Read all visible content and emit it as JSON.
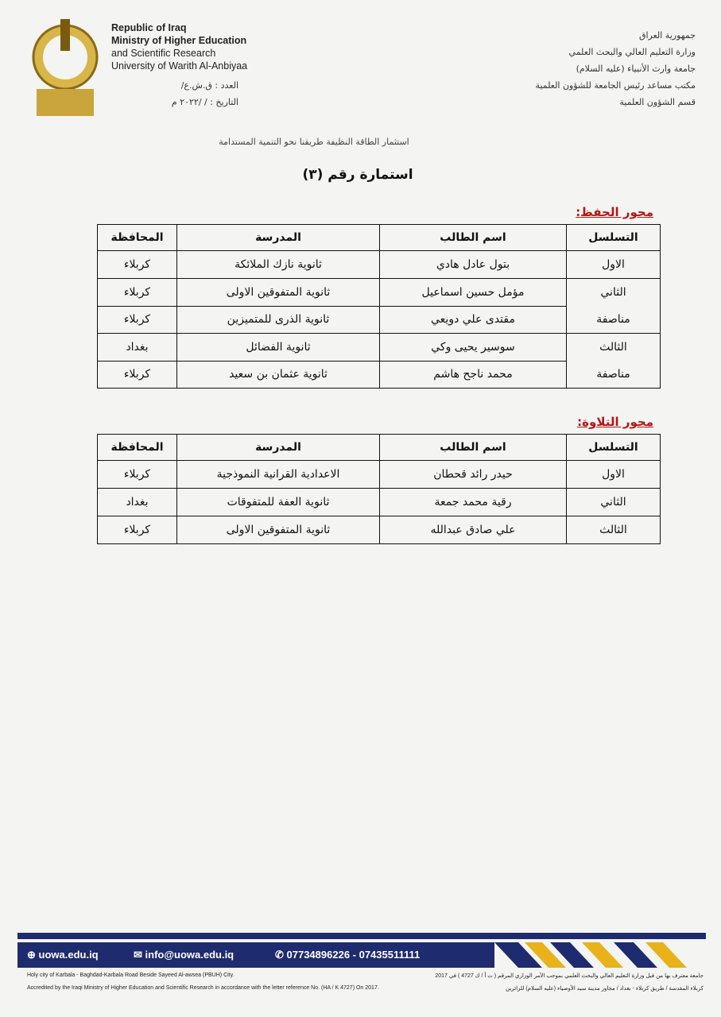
{
  "header": {
    "english": [
      "Republic of Iraq",
      "Ministry of Higher Education",
      "and Scientific Research",
      "University of Warith Al-Anbiyaa"
    ],
    "ref_number": "العدد : ق.ش.ع/",
    "ref_date": "التاريخ :   /    /٢٠٢٢ م",
    "arabic": [
      "جمهورية العراق",
      "وزارة التعليم العالي والبحث العلمي",
      "جامعة وارث الأنبياء (عليه السلام)",
      "مكتب مساعد رئيس الجامعة للشؤون العلمية",
      "قسم الشؤون العلمية"
    ]
  },
  "subtitle": "استثمار الطاقة النظيفة طريقنا نحو التنمية المستدامة",
  "title": "استمارة رقم (٣)",
  "sections": [
    {
      "heading": "محور الحفظ:",
      "columns": [
        "التسلسل",
        "اسم الطالب",
        "المدرسة",
        "المحافظة"
      ],
      "groups": [
        {
          "rank": [
            "الاول"
          ],
          "students": [
            [
              "بتول عادل هادي",
              "ثانوية نازك الملائكة",
              "كربلاء"
            ]
          ]
        },
        {
          "rank": [
            "الثاني",
            "مناصفة"
          ],
          "students": [
            [
              "مؤمل حسين اسماعيل",
              "ثانوية المتفوقين الاولى",
              "كربلاء"
            ],
            [
              "مقتدى علي دويعي",
              "ثانوية الذرى للمتميزين",
              "كربلاء"
            ]
          ]
        },
        {
          "rank": [
            "الثالث",
            "مناصفة"
          ],
          "students": [
            [
              "سوسير يحيى وكي",
              "ثانوية الفضائل",
              "بغداد"
            ],
            [
              "محمد ناجح هاشم",
              "ثانوية عثمان بن سعيد",
              "كربلاء"
            ]
          ]
        }
      ]
    },
    {
      "heading": "محور التلاوة:",
      "columns": [
        "التسلسل",
        "اسم الطالب",
        "المدرسة",
        "المحافظة"
      ],
      "groups": [
        {
          "rank": [
            "الاول"
          ],
          "students": [
            [
              "حيدر رائد قحطان",
              "الاعدادية القرانية النموذجية",
              "كربلاء"
            ]
          ]
        },
        {
          "rank": [
            "الثاني"
          ],
          "students": [
            [
              "رقية محمد جمعة",
              "ثانوية العفة للمتفوقات",
              "بغداد"
            ]
          ]
        },
        {
          "rank": [
            "الثالث"
          ],
          "students": [
            [
              "علي صادق عبدالله",
              "ثانوية المتفوقين الاولى",
              "كربلاء"
            ]
          ]
        }
      ]
    }
  ],
  "footer": {
    "website": "uowa.edu.iq",
    "email": "info@uowa.edu.iq",
    "phone": "07734896226 - 07435511111",
    "address_en": "Holy city of Karbala - Baghdad-Karbala Road Beside Sayeed Al-awsea (PBUH) City.",
    "accredited_en": "Accredited by the Iraqi Ministry of Higher Education and Scientific Research in accordance with the letter reference No. (HA / K 4727) On 2017.",
    "accredited_ar": "جامعة معترف بها من قبل وزارة التعليم العالي والبحث العلمي بموجب الأمر الوزاري المرقم ( ت أ / ك 4727 ) في 2017",
    "address_ar": "كربلاء المقدسة / طريق كربلاء - بغداد / مجاور مدينة سيد الأوصياء (عليه السلام) للزائرين"
  }
}
